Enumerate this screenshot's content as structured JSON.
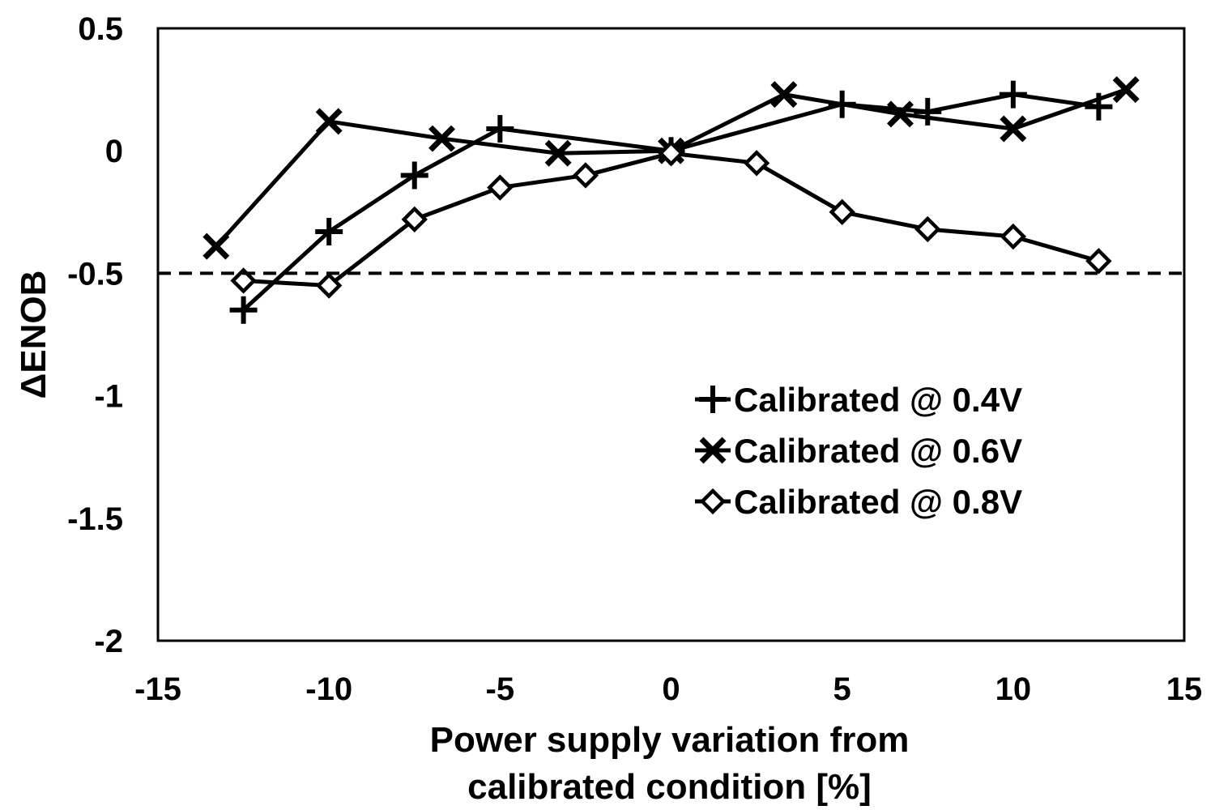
{
  "chart_data": {
    "type": "line",
    "xlabel_lines": [
      "Power supply variation from",
      "calibrated condition [%]"
    ],
    "ylabel": "ΔENOB",
    "xlim": [
      -15,
      15
    ],
    "ylim": [
      -2,
      0.5
    ],
    "x_ticks": [
      -15,
      -10,
      -5,
      0,
      5,
      10,
      15
    ],
    "y_ticks": [
      0.5,
      0,
      -0.5,
      -1,
      -1.5,
      -2
    ],
    "x_tick_labels": [
      "-15",
      "-10",
      "-5",
      "0",
      "5",
      "10",
      "15"
    ],
    "y_tick_labels": [
      "0.5",
      "0",
      "-0.5",
      "-1",
      "-1.5",
      "-2"
    ],
    "grid": false,
    "legend_position": "lower-right",
    "reference_line": {
      "y": -0.5,
      "style": "dashed"
    },
    "series": [
      {
        "name": "Calibrated @ 0.4V",
        "marker": "plus",
        "x": [
          -12.5,
          -10,
          -7.5,
          -5,
          0,
          5,
          7.5,
          10,
          12.5
        ],
        "y": [
          -0.65,
          -0.33,
          -0.1,
          0.09,
          0.0,
          0.19,
          0.16,
          0.23,
          0.18
        ]
      },
      {
        "name": "Calibrated @ 0.6V",
        "marker": "cross",
        "x": [
          -13.3,
          -10,
          -6.7,
          -3.3,
          0,
          3.3,
          6.7,
          10,
          13.3
        ],
        "y": [
          -0.39,
          0.12,
          0.05,
          -0.01,
          0.0,
          0.23,
          0.15,
          0.09,
          0.25
        ]
      },
      {
        "name": "Calibrated @ 0.8V",
        "marker": "diamond",
        "x": [
          -12.5,
          -10,
          -7.5,
          -5,
          -2.5,
          0,
          2.5,
          5,
          7.5,
          10,
          12.5
        ],
        "y": [
          -0.53,
          -0.55,
          -0.28,
          -0.15,
          -0.1,
          -0.01,
          -0.05,
          -0.25,
          -0.32,
          -0.35,
          -0.45
        ]
      }
    ]
  }
}
